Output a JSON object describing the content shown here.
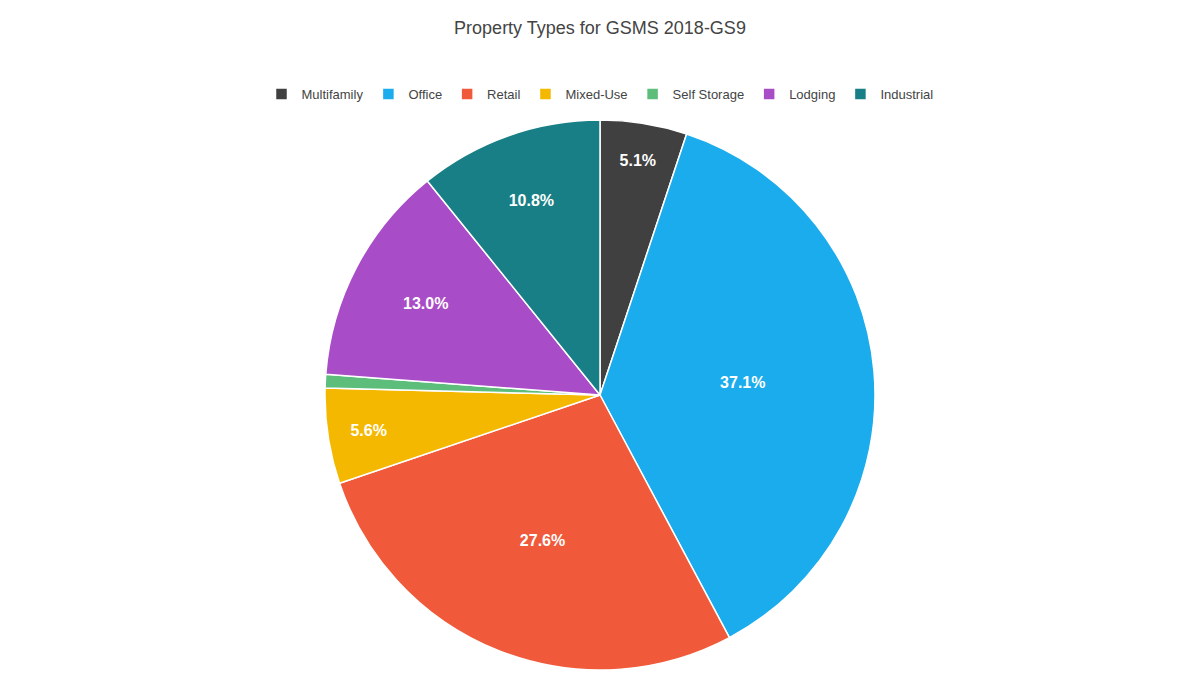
{
  "chart_data": {
    "type": "pie",
    "title": "Property Types for GSMS 2018-GS9",
    "categories": [
      "Multifamily",
      "Office",
      "Retail",
      "Mixed-Use",
      "Self Storage",
      "Lodging",
      "Industrial"
    ],
    "values": [
      5.1,
      37.1,
      27.6,
      5.6,
      0.8,
      13.0,
      10.8
    ],
    "value_labels": [
      "5.1%",
      "37.1%",
      "27.6%",
      "5.6%",
      null,
      "13.0%",
      "10.8%"
    ],
    "colors": [
      "#404040",
      "#1AACEC",
      "#F05A3A",
      "#F5B800",
      "#5DBD7A",
      "#A94CC7",
      "#177F85"
    ],
    "data_labels": true,
    "legend": "top"
  }
}
